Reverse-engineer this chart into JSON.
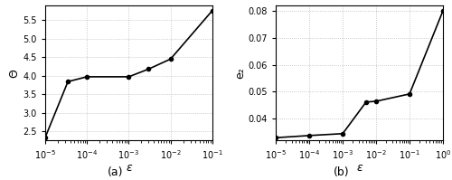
{
  "plot_a": {
    "x": [
      1e-05,
      3.5e-05,
      0.0001,
      0.001,
      0.003,
      0.01,
      0.1
    ],
    "y": [
      2.33,
      3.84,
      3.97,
      3.97,
      4.18,
      4.45,
      5.76
    ],
    "xlabel": "ε",
    "ylabel": "Θ",
    "xlim": [
      1e-05,
      0.1
    ],
    "ylim": [
      2.25,
      5.9
    ],
    "yticks": [
      2.5,
      3.0,
      3.5,
      4.0,
      4.5,
      5.0,
      5.5
    ],
    "label": "(a)"
  },
  "plot_b": {
    "x": [
      1e-05,
      0.0001,
      0.001,
      0.005,
      0.01,
      0.1,
      1.0
    ],
    "y": [
      0.033,
      0.0338,
      0.0345,
      0.0462,
      0.0465,
      0.0492,
      0.08
    ],
    "xlabel": "ε",
    "ylabel": "e₂",
    "xlim": [
      1e-05,
      1.0
    ],
    "ylim": [
      0.032,
      0.082
    ],
    "yticks": [
      0.04,
      0.05,
      0.06,
      0.07,
      0.08
    ],
    "label": "(b)"
  },
  "line_color": "#000000",
  "marker": "o",
  "markersize": 3,
  "linewidth": 1.2,
  "grid_color": "#bbbbbb",
  "label_fontsize": 9,
  "tick_fontsize": 7,
  "axis_label_fontsize": 9
}
